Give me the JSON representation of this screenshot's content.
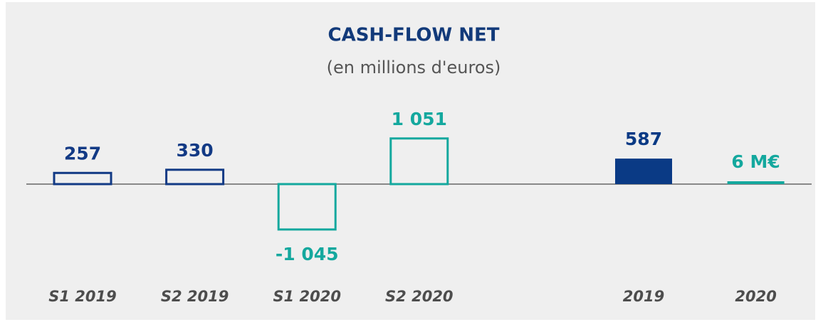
{
  "chart_data": {
    "type": "bar",
    "title": "CASH-FLOW NET",
    "subtitle": "(en millions d'euros)",
    "categories": [
      "S1 2019",
      "S2 2019",
      "S1 2020",
      "S2 2020",
      null,
      "2019",
      "2020"
    ],
    "values": [
      257,
      330,
      -1045,
      1051,
      null,
      587,
      6
    ],
    "value_labels": [
      "257",
      "330",
      "-1 045",
      "1 051",
      null,
      "587",
      "6 M€"
    ],
    "colors": [
      "#123a85",
      "#123a85",
      "#14a89e",
      "#14a89e",
      null,
      "#0a3a85",
      "#14a89e"
    ],
    "outlined": [
      true,
      true,
      true,
      true,
      null,
      false,
      false
    ],
    "ylim": [
      -1800,
      1800
    ]
  }
}
